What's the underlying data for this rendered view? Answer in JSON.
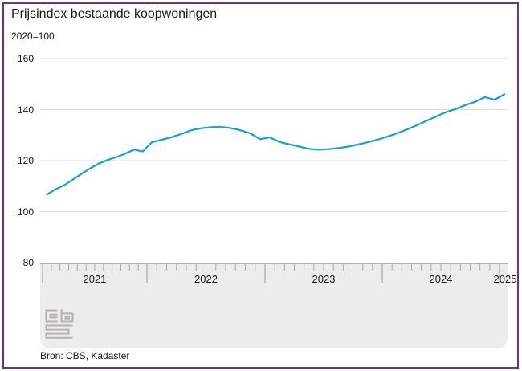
{
  "window": {
    "frame_color": "#6b3191",
    "background_color": "#ffffff"
  },
  "header": {
    "title": "Prijsindex bestaande koopwoningen",
    "subtitle": "2020=100"
  },
  "source": {
    "label": "Bron: CBS, Kadaster"
  },
  "logo": {
    "name": "cbs-logo",
    "alt": "cbs"
  },
  "chart_data": {
    "type": "line",
    "title": "Prijsindex bestaande koopwoningen",
    "subtitle": "2020=100",
    "ylim": [
      80,
      160
    ],
    "y_ticks": [
      160,
      140,
      120,
      100,
      80
    ],
    "x_year_labels": [
      "2021",
      "2022",
      "2023",
      "2024",
      "2025"
    ],
    "grid": true,
    "legend": false,
    "line_color": "#1a9fd4",
    "grid_color": "#dcdcdc",
    "tick_color": "#a8a8a8",
    "band_color": "#ececec",
    "categories": [
      "2021-01",
      "2021-02",
      "2021-03",
      "2021-04",
      "2021-05",
      "2021-06",
      "2021-07",
      "2021-08",
      "2021-09",
      "2021-10",
      "2021-11",
      "2021-12",
      "2022-01",
      "2022-02",
      "2022-03",
      "2022-04",
      "2022-05",
      "2022-06",
      "2022-07",
      "2022-08",
      "2022-09",
      "2022-10",
      "2022-11",
      "2022-12",
      "2023-01",
      "2023-02",
      "2023-03",
      "2023-04",
      "2023-05",
      "2023-06",
      "2023-07",
      "2023-08",
      "2023-09",
      "2023-10",
      "2023-11",
      "2023-12",
      "2024-01",
      "2024-02",
      "2024-03",
      "2024-04",
      "2024-05",
      "2024-06",
      "2024-07",
      "2024-08",
      "2024-09",
      "2024-10",
      "2024-11",
      "2024-12",
      "2025-01"
    ],
    "series": [
      {
        "name": "Prijsindex bestaande koopwoningen (2020=100)",
        "values": [
          106.7,
          108.8,
          110.4,
          112.6,
          114.9,
          117.0,
          118.9,
          120.3,
          121.4,
          122.7,
          124.3,
          123.6,
          127.2,
          128.2,
          129.2,
          130.5,
          131.9,
          132.7,
          133.1,
          133.2,
          132.8,
          131.9,
          130.7,
          128.4,
          129.1,
          127.3,
          126.4,
          125.5,
          124.6,
          124.3,
          124.5,
          124.9,
          125.5,
          126.3,
          127.2,
          128.2,
          129.4,
          130.7,
          132.2,
          133.8,
          135.6,
          137.3,
          139.0,
          140.2,
          141.8,
          143.1,
          144.9,
          143.9,
          146.0
        ]
      }
    ]
  }
}
